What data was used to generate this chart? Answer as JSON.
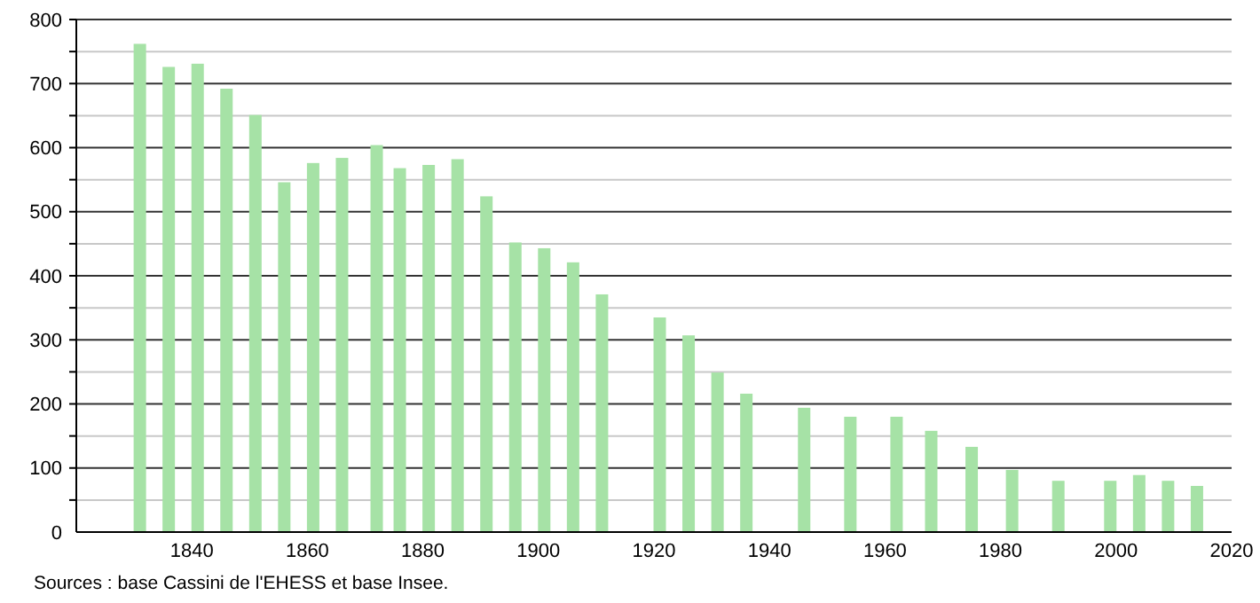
{
  "chart_data": {
    "type": "bar",
    "annotations": [
      "Sources : base Cassini de l'EHESS et base Insee."
    ],
    "x": [
      1831,
      1836,
      1841,
      1846,
      1851,
      1856,
      1861,
      1866,
      1872,
      1876,
      1881,
      1886,
      1891,
      1896,
      1901,
      1906,
      1911,
      1921,
      1926,
      1931,
      1936,
      1946,
      1954,
      1962,
      1968,
      1975,
      1982,
      1990,
      1999,
      2004,
      2009,
      2014
    ],
    "values": [
      762,
      726,
      731,
      692,
      651,
      546,
      576,
      584,
      604,
      568,
      573,
      582,
      524,
      452,
      443,
      421,
      371,
      335,
      307,
      249,
      216,
      194,
      180,
      180,
      158,
      133,
      97,
      80,
      80,
      89,
      80,
      72
    ],
    "color": "#a6e2a6",
    "xlim": [
      1820,
      2020
    ],
    "xticks": [
      1840,
      1860,
      1880,
      1900,
      1920,
      1940,
      1960,
      1980,
      2000,
      2020
    ],
    "ylim": [
      0,
      800
    ],
    "yticks": [
      0,
      {
        "value": 50,
        "label": null
      },
      100,
      {
        "value": 150,
        "label": null
      },
      200,
      {
        "value": 250,
        "label": null
      },
      300,
      {
        "value": 350,
        "label": null
      },
      400,
      {
        "value": 450,
        "label": null
      },
      500,
      {
        "value": 550,
        "label": null
      },
      600,
      {
        "value": 650,
        "label": null
      },
      700,
      {
        "value": 750,
        "label": null
      },
      800
    ],
    "grid": "y"
  }
}
